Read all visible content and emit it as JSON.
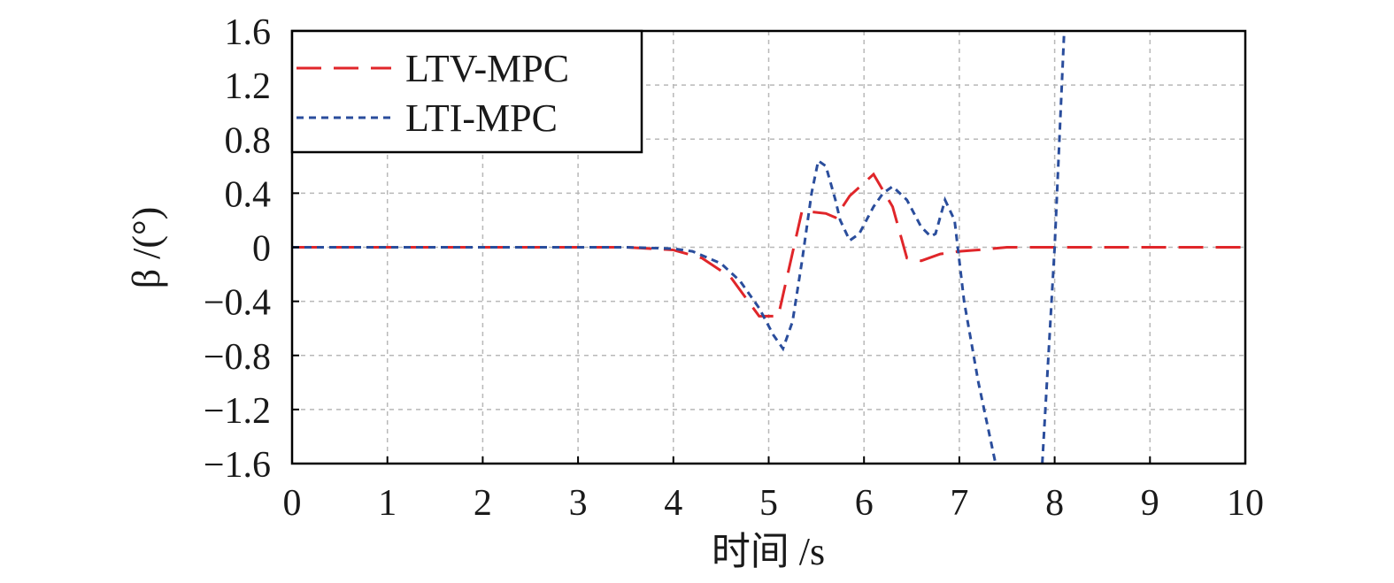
{
  "chart_data": {
    "type": "line",
    "x_label": "时间 /s",
    "y_label": "β /(°)",
    "xlim": [
      0,
      10
    ],
    "xticks": [
      0,
      1,
      2,
      3,
      4,
      5,
      6,
      7,
      8,
      9,
      10
    ],
    "ylim": [
      -1.6,
      1.6
    ],
    "yticks": [
      {
        "value": -1.6,
        "label": "−1.6"
      },
      {
        "value": -1.2,
        "label": "−1.2"
      },
      {
        "value": -0.8,
        "label": "−0.8"
      },
      {
        "value": -0.4,
        "label": "−0.4"
      },
      0,
      0.4,
      0.8,
      1.2,
      1.6
    ],
    "grid": true,
    "legend": "upper left",
    "series": [
      {
        "name": "LTV-MPC",
        "color": "#e0262a",
        "dash": "28 14",
        "x": [
          0,
          1,
          2,
          3,
          3.5,
          4,
          4.3,
          4.6,
          4.9,
          5.1,
          5.35,
          5.6,
          5.7,
          5.85,
          6.1,
          6.3,
          6.45,
          6.6,
          6.8,
          7.0,
          7.2,
          7.5,
          8,
          9,
          10
        ],
        "values": [
          0,
          0,
          0,
          0,
          0,
          -0.02,
          -0.08,
          -0.22,
          -0.51,
          -0.51,
          0.27,
          0.25,
          0.22,
          0.38,
          0.54,
          0.3,
          -0.08,
          -0.1,
          -0.05,
          -0.03,
          -0.02,
          0,
          0,
          0,
          0
        ]
      },
      {
        "name": "LTI-MPC",
        "color": "#2a4d9c",
        "dash": "8 6",
        "x": [
          0,
          1,
          2,
          3,
          3.5,
          4,
          4.2,
          4.5,
          4.7,
          4.9,
          5.05,
          5.15,
          5.25,
          5.35,
          5.45,
          5.52,
          5.6,
          5.7,
          5.75,
          5.85,
          5.95,
          6.1,
          6.2,
          6.3,
          6.45,
          6.6,
          6.7,
          6.75,
          6.85,
          6.95,
          7.05,
          7.2,
          7.38,
          7.6,
          7.87,
          8.0,
          8.1
        ],
        "values": [
          0,
          0,
          0,
          0,
          0,
          -0.01,
          -0.03,
          -0.12,
          -0.25,
          -0.45,
          -0.65,
          -0.75,
          -0.55,
          -0.1,
          0.4,
          0.64,
          0.6,
          0.35,
          0.2,
          0.05,
          0.1,
          0.3,
          0.4,
          0.45,
          0.35,
          0.15,
          0.08,
          0.1,
          0.35,
          0.2,
          -0.4,
          -1.0,
          -1.6,
          null,
          -1.6,
          0,
          1.6
        ]
      }
    ]
  }
}
